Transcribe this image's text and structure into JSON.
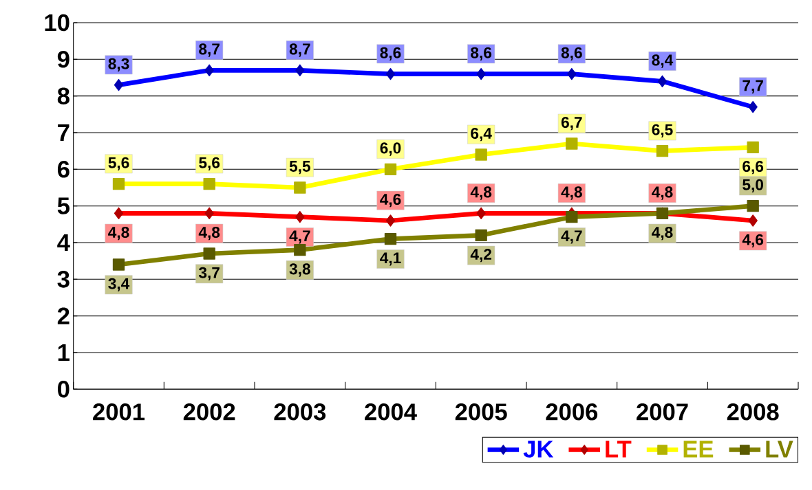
{
  "chart_data": {
    "type": "line",
    "categories": [
      "2001",
      "2002",
      "2003",
      "2004",
      "2005",
      "2006",
      "2007",
      "2008"
    ],
    "ylim": [
      0,
      10
    ],
    "yticks": [
      0,
      1,
      2,
      3,
      4,
      5,
      6,
      7,
      8,
      9,
      10
    ],
    "grid": "y",
    "legend": "bottom right",
    "series": [
      {
        "name": "JK",
        "color": "#0000ff",
        "marker": "diamond",
        "values": [
          8.3,
          8.7,
          8.7,
          8.6,
          8.6,
          8.6,
          8.4,
          7.7
        ],
        "value_labels": [
          "8,3",
          "8,7",
          "8,7",
          "8,6",
          "8,6",
          "8,6",
          "8,4",
          "7,7"
        ]
      },
      {
        "name": "LT",
        "color": "#ff0000",
        "marker": "diamond",
        "values": [
          4.8,
          4.8,
          4.7,
          4.6,
          4.8,
          4.8,
          4.8,
          4.6
        ],
        "value_labels": [
          "4,8",
          "4,8",
          "4,7",
          "4,6",
          "4,8",
          "4,8",
          "4,8",
          "4,6"
        ]
      },
      {
        "name": "EE",
        "color": "#ffff00",
        "marker": "square",
        "values": [
          5.6,
          5.6,
          5.5,
          6.0,
          6.4,
          6.7,
          6.5,
          6.6
        ],
        "value_labels": [
          "5,6",
          "5,6",
          "5,5",
          "6,0",
          "6,4",
          "6,7",
          "6,5",
          "6,6"
        ]
      },
      {
        "name": "LV",
        "color": "#808000",
        "marker": "square",
        "values": [
          3.4,
          3.7,
          3.8,
          4.1,
          4.2,
          4.7,
          4.8,
          5.0
        ],
        "value_labels": [
          "3,4",
          "3,7",
          "3,8",
          "4,1",
          "4,2",
          "4,7",
          "4,8",
          "5,0"
        ]
      }
    ]
  }
}
